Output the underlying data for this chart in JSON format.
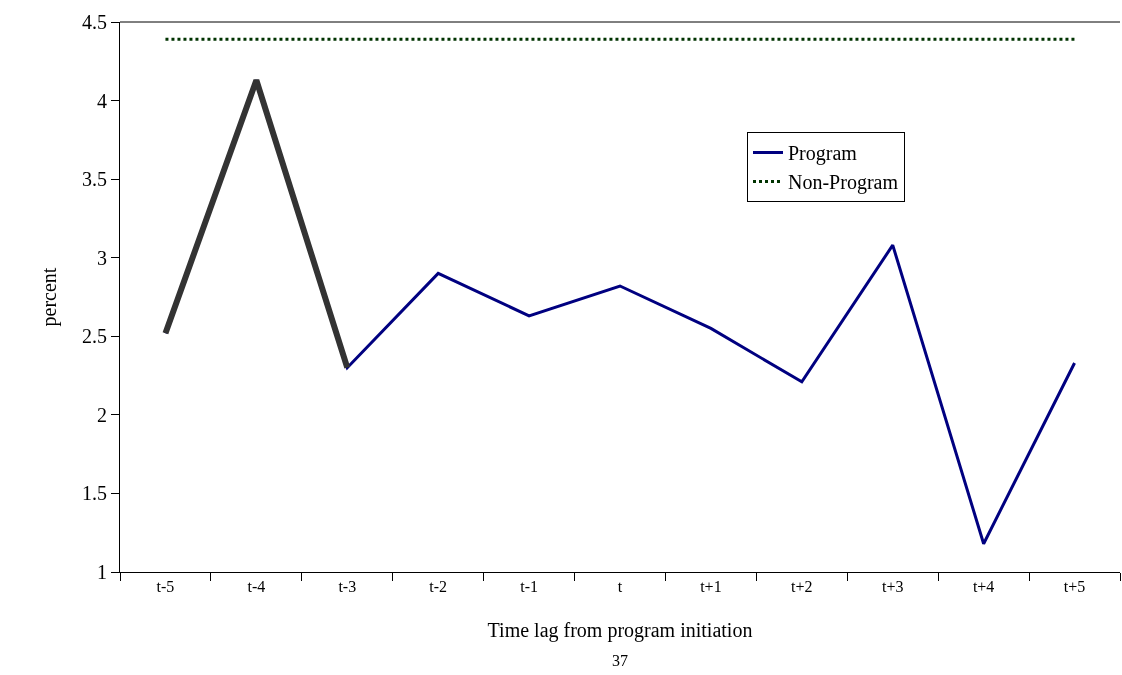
{
  "chart_data": {
    "type": "line",
    "xlabel": "Time lag from program initiation",
    "ylabel": "percent",
    "annotations": [
      "37"
    ],
    "categories": [
      "t-5",
      "t-4",
      "t-3",
      "t-2",
      "t-1",
      "t",
      "t+1",
      "t+2",
      "t+3",
      "t+4",
      "t+5"
    ],
    "series": [
      {
        "name": "Program",
        "color": "#000080",
        "line_style": "solid",
        "values": [
          2.52,
          4.13,
          2.3,
          2.9,
          2.63,
          2.82,
          2.55,
          2.21,
          3.08,
          1.18,
          2.33
        ]
      },
      {
        "name": "Non-Program",
        "color": "#003300",
        "line_style": "dotted",
        "values": [
          4.39,
          4.39,
          4.39,
          4.39,
          4.39,
          4.39,
          4.39,
          4.39,
          4.39,
          4.39,
          4.39
        ]
      },
      {
        "color": "#333333",
        "line_style": "solid",
        "values": [
          2.52,
          4.13,
          2.3,
          null,
          null,
          null,
          null,
          null,
          null,
          null,
          null
        ]
      }
    ],
    "ylim": [
      1,
      4.5
    ],
    "yticks": [
      1,
      1.5,
      2,
      2.5,
      3,
      3.5,
      4,
      4.5
    ],
    "legend": "top right",
    "marker": "none"
  }
}
